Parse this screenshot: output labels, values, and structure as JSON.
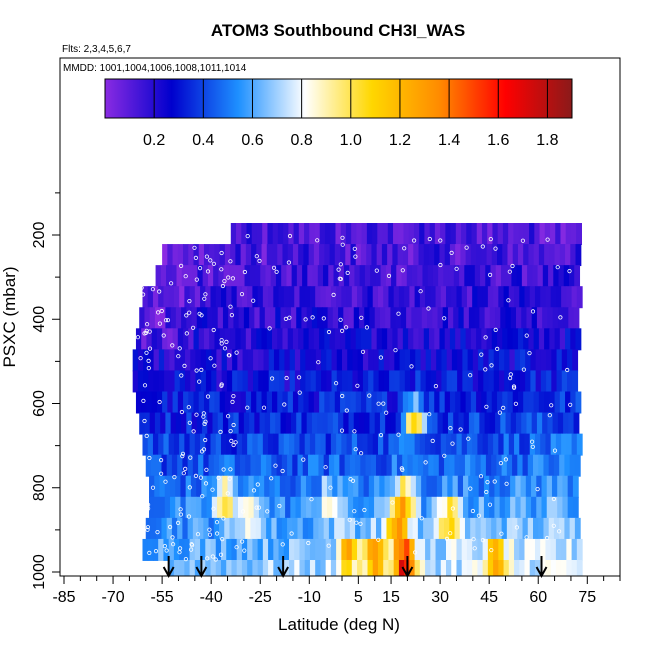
{
  "chart_data": {
    "type": "heatmap",
    "title": "ATOM3 Southbound CH3I_WAS",
    "flights_note": "Flts: 2,3,4,5,6,7",
    "dates_note": "MMDD: 1001,1004,1006,1008,1011,1014",
    "xlabel": "Latitude (deg N)",
    "ylabel": "PSXC (mbar)",
    "xlim": [
      -85,
      85
    ],
    "ylim": [
      1000,
      20
    ],
    "x_ticks": [
      -85,
      -70,
      -55,
      -40,
      -25,
      -10,
      5,
      15,
      30,
      45,
      60,
      75
    ],
    "x_tick_labels": [
      "-85",
      "-70",
      "-55",
      "-40",
      "-25",
      "-10",
      "5",
      "15",
      "30",
      "45",
      "60",
      "75"
    ],
    "y_ticks": [
      200,
      400,
      600,
      800,
      1000
    ],
    "y_tick_labels": [
      "200",
      "400",
      "600",
      "800",
      "1000"
    ],
    "colorbar": {
      "range": [
        0.0,
        1.9
      ],
      "ticks": [
        0.2,
        0.4,
        0.6,
        0.8,
        1.0,
        1.2,
        1.4,
        1.6,
        1.8
      ],
      "tick_labels": [
        "0.2",
        "0.4",
        "0.6",
        "0.8",
        "1.0",
        "1.2",
        "1.4",
        "1.6",
        "1.8"
      ],
      "colors": [
        "#8a2be2",
        "#0000cd",
        "#1e90ff",
        "#ffffff",
        "#ffd700",
        "#ff8c00",
        "#ff0000",
        "#8b1a1a"
      ]
    },
    "arrow_latitudes": [
      -53,
      -43,
      -18,
      20,
      61
    ],
    "pressure_levels": [
      200,
      250,
      300,
      350,
      400,
      450,
      500,
      550,
      600,
      650,
      700,
      750,
      800,
      850,
      900,
      950,
      1000
    ],
    "level_extents": [
      [
        -34,
        72
      ],
      [
        -55,
        72
      ],
      [
        -57,
        72
      ],
      [
        -61,
        72
      ],
      [
        -62,
        72
      ],
      [
        -63,
        72
      ],
      [
        -64,
        72
      ],
      [
        -64,
        72
      ],
      [
        -63,
        72
      ],
      [
        -62,
        72
      ],
      [
        -61,
        72
      ],
      [
        -60,
        72
      ],
      [
        -59,
        72
      ],
      [
        -59,
        72
      ],
      [
        -60,
        72
      ],
      [
        -61,
        72
      ],
      [
        -53,
        72
      ]
    ],
    "hotspots": [
      {
        "lat": 19,
        "p": 980,
        "value": 1.75
      },
      {
        "lat": 10,
        "p": 970,
        "value": 1.45
      },
      {
        "lat": 17,
        "p": 890,
        "value": 1.3
      },
      {
        "lat": 19,
        "p": 830,
        "value": 1.25
      },
      {
        "lat": 22,
        "p": 640,
        "value": 1.35
      },
      {
        "lat": 33,
        "p": 880,
        "value": 1.2
      },
      {
        "lat": 47,
        "p": 975,
        "value": 1.2
      },
      {
        "lat": -36,
        "p": 830,
        "value": 1.2
      },
      {
        "lat": -28,
        "p": 870,
        "value": 1.1
      },
      {
        "lat": 2,
        "p": 960,
        "value": 1.3
      },
      {
        "lat": -4,
        "p": 840,
        "value": 1.0
      }
    ]
  }
}
